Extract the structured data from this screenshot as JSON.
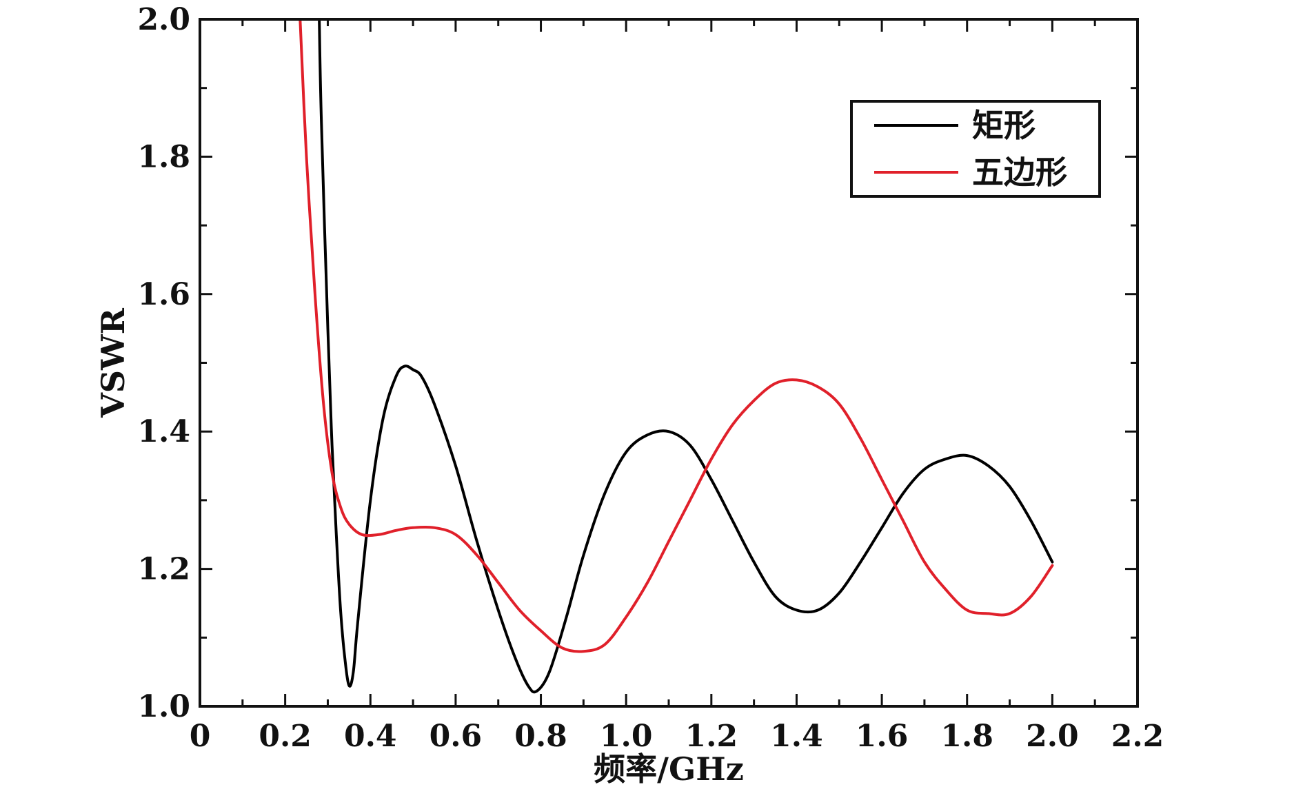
{
  "chart_data": {
    "type": "line",
    "xlabel": "频率/GHz",
    "ylabel": "VSWR",
    "xlim": [
      0,
      2.2
    ],
    "ylim": [
      1.0,
      2.0
    ],
    "x_ticks": [
      0,
      0.2,
      0.4,
      0.6,
      0.8,
      1.0,
      1.2,
      1.4,
      1.6,
      1.8,
      2.0,
      2.2
    ],
    "x_tick_labels": [
      "0",
      "0.2",
      "0.4",
      "0.6",
      "0.8",
      "1.0",
      "1.2",
      "1.4",
      "1.6",
      "1.8",
      "2.0",
      "2.2"
    ],
    "y_ticks": [
      1.0,
      1.2,
      1.4,
      1.6,
      1.8,
      2.0
    ],
    "y_tick_labels": [
      "1.0",
      "1.2",
      "1.4",
      "1.6",
      "1.8",
      "2.0"
    ],
    "grid": false,
    "legend_position": "top-right",
    "series": [
      {
        "name": "矩形",
        "color": "#000000",
        "x": [
          0.28,
          0.285,
          0.3,
          0.31,
          0.32,
          0.33,
          0.34,
          0.35,
          0.36,
          0.37,
          0.4,
          0.43,
          0.46,
          0.48,
          0.5,
          0.52,
          0.55,
          0.6,
          0.65,
          0.7,
          0.74,
          0.77,
          0.79,
          0.82,
          0.86,
          0.9,
          0.95,
          1.0,
          1.05,
          1.1,
          1.15,
          1.2,
          1.25,
          1.3,
          1.35,
          1.4,
          1.45,
          1.5,
          1.55,
          1.6,
          1.65,
          1.7,
          1.75,
          1.8,
          1.85,
          1.9,
          1.95,
          2.0
        ],
        "y": [
          2.0,
          1.85,
          1.55,
          1.38,
          1.25,
          1.14,
          1.07,
          1.03,
          1.05,
          1.12,
          1.3,
          1.42,
          1.48,
          1.495,
          1.49,
          1.48,
          1.44,
          1.35,
          1.24,
          1.14,
          1.07,
          1.03,
          1.022,
          1.05,
          1.13,
          1.22,
          1.31,
          1.37,
          1.395,
          1.4,
          1.38,
          1.33,
          1.27,
          1.21,
          1.16,
          1.14,
          1.14,
          1.165,
          1.21,
          1.26,
          1.31,
          1.345,
          1.36,
          1.365,
          1.35,
          1.32,
          1.27,
          1.21
        ]
      },
      {
        "name": "五边形",
        "color": "#e0202a",
        "x": [
          0.235,
          0.25,
          0.27,
          0.29,
          0.31,
          0.33,
          0.35,
          0.38,
          0.42,
          0.46,
          0.5,
          0.55,
          0.6,
          0.65,
          0.7,
          0.75,
          0.8,
          0.85,
          0.9,
          0.95,
          1.0,
          1.05,
          1.1,
          1.15,
          1.2,
          1.25,
          1.3,
          1.35,
          1.4,
          1.45,
          1.5,
          1.55,
          1.6,
          1.65,
          1.7,
          1.75,
          1.8,
          1.85,
          1.9,
          1.95,
          2.0
        ],
        "y": [
          2.0,
          1.8,
          1.6,
          1.44,
          1.34,
          1.29,
          1.265,
          1.25,
          1.25,
          1.256,
          1.26,
          1.26,
          1.25,
          1.22,
          1.18,
          1.14,
          1.11,
          1.085,
          1.08,
          1.09,
          1.13,
          1.18,
          1.24,
          1.3,
          1.36,
          1.41,
          1.445,
          1.47,
          1.475,
          1.465,
          1.44,
          1.39,
          1.33,
          1.27,
          1.21,
          1.17,
          1.14,
          1.135,
          1.135,
          1.16,
          1.205
        ]
      }
    ]
  }
}
